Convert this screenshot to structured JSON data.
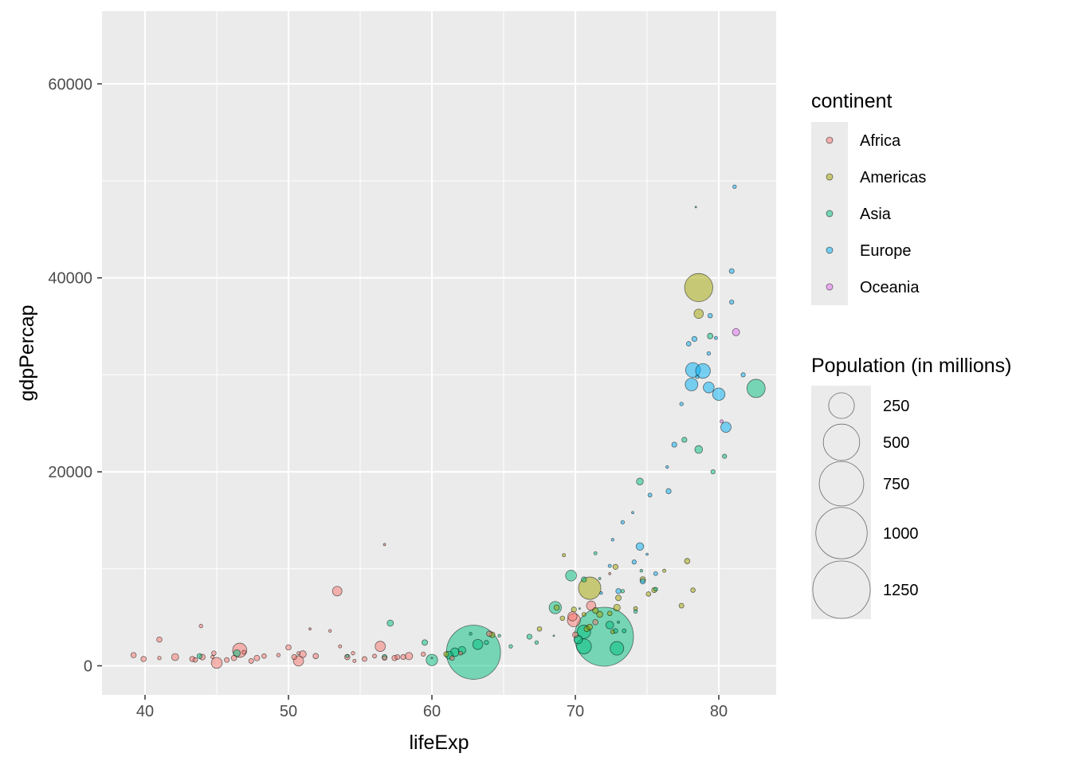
{
  "chart_data": {
    "type": "scatter",
    "xlabel": "lifeExp",
    "ylabel": "gdpPercap",
    "xlim": [
      37,
      84
    ],
    "ylim": [
      -3000,
      67500
    ],
    "x_ticks": [
      40,
      50,
      60,
      70,
      80
    ],
    "y_ticks": [
      0,
      20000,
      40000,
      60000
    ],
    "x_tick_labels": [
      "40",
      "50",
      "60",
      "70",
      "80"
    ],
    "y_tick_labels": [
      "0",
      "20000",
      "40000",
      "60000"
    ],
    "grid": true,
    "point_alpha": 0.5,
    "color_legend": {
      "title": "continent",
      "position": "right",
      "entries": [
        {
          "name": "Africa",
          "color": "#F8766D"
        },
        {
          "name": "Americas",
          "color": "#A3A500"
        },
        {
          "name": "Asia",
          "color": "#00BF7D"
        },
        {
          "name": "Europe",
          "color": "#00B0F6"
        },
        {
          "name": "Oceania",
          "color": "#E76BF3"
        }
      ]
    },
    "size_legend": {
      "title": "Population (in millions)",
      "position": "right",
      "breaks": [
        250,
        500,
        750,
        1000,
        1250
      ],
      "labels": [
        "250",
        "500",
        "750",
        "1000",
        "1250"
      ]
    },
    "series": [
      {
        "name": "Africa",
        "color": "#F8766D",
        "points": [
          [
            39.2,
            1100,
            11
          ],
          [
            39.9,
            700,
            11
          ],
          [
            41.0,
            2700,
            11
          ],
          [
            41.0,
            800,
            5
          ],
          [
            42.1,
            900,
            19
          ],
          [
            43.3,
            700,
            11
          ],
          [
            43.5,
            600,
            8
          ],
          [
            43.9,
            4100,
            5
          ],
          [
            44.0,
            900,
            12
          ],
          [
            44.7,
            900,
            4
          ],
          [
            44.8,
            1300,
            8
          ],
          [
            45.0,
            300,
            45
          ],
          [
            45.7,
            600,
            9
          ],
          [
            46.2,
            800,
            11
          ],
          [
            46.6,
            1600,
            77
          ],
          [
            46.9,
            1400,
            6
          ],
          [
            47.4,
            500,
            9
          ],
          [
            47.8,
            800,
            12
          ],
          [
            48.3,
            1000,
            8
          ],
          [
            49.3,
            1100,
            5
          ],
          [
            50.0,
            1900,
            11
          ],
          [
            50.4,
            900,
            10
          ],
          [
            50.7,
            1300,
            4
          ],
          [
            50.7,
            500,
            40
          ],
          [
            51.0,
            1200,
            18
          ],
          [
            51.5,
            3800,
            2
          ],
          [
            51.9,
            1000,
            11
          ],
          [
            52.9,
            3600,
            3
          ],
          [
            53.4,
            7700,
            35
          ],
          [
            53.6,
            2000,
            4
          ],
          [
            54.1,
            900,
            11
          ],
          [
            54.5,
            1300,
            5
          ],
          [
            54.6,
            500,
            4
          ],
          [
            55.3,
            700,
            9
          ],
          [
            56.0,
            1000,
            6
          ],
          [
            56.4,
            2000,
            40
          ],
          [
            56.7,
            800,
            8
          ],
          [
            56.7,
            12500,
            2
          ],
          [
            57.4,
            800,
            11
          ],
          [
            57.6,
            900,
            9
          ],
          [
            58.0,
            900,
            10
          ],
          [
            58.4,
            1000,
            21
          ],
          [
            59.4,
            1200,
            7
          ],
          [
            60.0,
            800,
            1
          ],
          [
            61.4,
            800,
            8
          ],
          [
            62.0,
            1300,
            6
          ],
          [
            64.0,
            3300,
            11
          ],
          [
            69.8,
            5100,
            32
          ],
          [
            69.9,
            4700,
            65
          ],
          [
            70.0,
            3200,
            12
          ],
          [
            71.1,
            6200,
            33
          ],
          [
            71.4,
            4500,
            11
          ],
          [
            72.4,
            9500,
            2
          ]
        ]
      },
      {
        "name": "Americas",
        "color": "#A3A500",
        "points": [
          [
            61.0,
            1200,
            10
          ],
          [
            64.2,
            3200,
            12
          ],
          [
            67.5,
            3800,
            8
          ],
          [
            68.7,
            6000,
            11
          ],
          [
            69.1,
            4900,
            8
          ],
          [
            69.2,
            11400,
            4
          ],
          [
            69.9,
            5800,
            10
          ],
          [
            70.6,
            5300,
            6
          ],
          [
            70.8,
            3800,
            12
          ],
          [
            71.0,
            8000,
            190
          ],
          [
            71.0,
            4000,
            12
          ],
          [
            71.4,
            5700,
            13
          ],
          [
            71.7,
            5300,
            14
          ],
          [
            72.4,
            5400,
            8
          ],
          [
            72.6,
            3500,
            6
          ],
          [
            72.8,
            10200,
            10
          ],
          [
            72.9,
            6000,
            17
          ],
          [
            73.0,
            7000,
            12
          ],
          [
            74.2,
            5900,
            6
          ],
          [
            74.7,
            8900,
            12
          ],
          [
            75.1,
            7400,
            8
          ],
          [
            75.5,
            7800,
            10
          ],
          [
            76.2,
            9800,
            4
          ],
          [
            77.4,
            6200,
            9
          ],
          [
            77.8,
            10800,
            11
          ],
          [
            78.2,
            7800,
            8
          ],
          [
            78.6,
            39000,
            301
          ],
          [
            78.6,
            36300,
            33
          ]
        ]
      },
      {
        "name": "Asia",
        "color": "#00BF7D",
        "points": [
          [
            43.8,
            1000,
            10
          ],
          [
            46.4,
            1300,
            19
          ],
          [
            54.1,
            1000,
            4
          ],
          [
            56.7,
            900,
            10
          ],
          [
            57.1,
            4400,
            15
          ],
          [
            59.5,
            2400,
            12
          ],
          [
            60.0,
            600,
            50
          ],
          [
            61.2,
            1100,
            23
          ],
          [
            61.6,
            1400,
            28
          ],
          [
            62.1,
            1600,
            22
          ],
          [
            62.7,
            3300,
            3
          ],
          [
            62.9,
            1400,
            1111
          ],
          [
            63.2,
            2200,
            39
          ],
          [
            63.8,
            2400,
            7
          ],
          [
            64.7,
            3100,
            3
          ],
          [
            65.5,
            2000,
            5
          ],
          [
            66.8,
            3000,
            10
          ],
          [
            67.3,
            2400,
            5
          ],
          [
            68.5,
            3100,
            1
          ],
          [
            68.6,
            6000,
            57
          ],
          [
            69.7,
            9300,
            45
          ],
          [
            70.2,
            2700,
            27
          ],
          [
            70.3,
            5900,
            1
          ],
          [
            70.6,
            3500,
            69
          ],
          [
            70.6,
            2000,
            85
          ],
          [
            70.6,
            8900,
            10
          ],
          [
            71.4,
            11600,
            4
          ],
          [
            71.7,
            9000,
            2
          ],
          [
            72.0,
            3000,
            1318
          ],
          [
            72.4,
            4200,
            23
          ],
          [
            72.8,
            3600,
            8
          ],
          [
            72.9,
            1800,
            70
          ],
          [
            73.0,
            4500,
            2
          ],
          [
            73.3,
            7700,
            5
          ],
          [
            73.4,
            3600,
            6
          ],
          [
            74.2,
            5600,
            5
          ],
          [
            74.5,
            19000,
            18
          ],
          [
            74.6,
            9800,
            3
          ],
          [
            75.6,
            7900,
            6
          ],
          [
            77.6,
            23300,
            10
          ],
          [
            78.4,
            47300,
            1
          ],
          [
            78.6,
            22300,
            23
          ],
          [
            79.4,
            34000,
            12
          ],
          [
            79.6,
            20000,
            7
          ],
          [
            80.4,
            21600,
            7
          ],
          [
            82.6,
            28600,
            127
          ]
        ]
      },
      {
        "name": "Europe",
        "color": "#00B0F6",
        "points": [
          [
            71.8,
            7500,
            3
          ],
          [
            72.4,
            10300,
            4
          ],
          [
            72.6,
            13000,
            3
          ],
          [
            73.0,
            7700,
            10
          ],
          [
            73.3,
            14800,
            5
          ],
          [
            74.0,
            15800,
            2
          ],
          [
            74.1,
            10700,
            7
          ],
          [
            74.5,
            12300,
            22
          ],
          [
            74.7,
            8700,
            10
          ],
          [
            75.0,
            11500,
            2
          ],
          [
            75.2,
            17600,
            6
          ],
          [
            75.6,
            9500,
            6
          ],
          [
            76.4,
            20500,
            3
          ],
          [
            76.5,
            18000,
            10
          ],
          [
            76.9,
            22800,
            10
          ],
          [
            77.4,
            27000,
            5
          ],
          [
            77.9,
            33200,
            8
          ],
          [
            78.1,
            29000,
            61
          ],
          [
            78.2,
            30500,
            83
          ],
          [
            78.3,
            33700,
            10
          ],
          [
            78.5,
            29800,
            5
          ],
          [
            78.9,
            30400,
            82
          ],
          [
            79.3,
            28700,
            45
          ],
          [
            79.3,
            32200,
            5
          ],
          [
            79.4,
            36100,
            8
          ],
          [
            79.8,
            33800,
            4
          ],
          [
            80.0,
            28000,
            58
          ],
          [
            80.5,
            24600,
            40
          ],
          [
            80.9,
            37500,
            7
          ],
          [
            80.9,
            40700,
            9
          ],
          [
            81.1,
            49400,
            5
          ],
          [
            81.7,
            30000,
            7
          ]
        ]
      },
      {
        "name": "Oceania",
        "color": "#E76BF3",
        "points": [
          [
            80.2,
            25200,
            4
          ],
          [
            81.2,
            34400,
            20
          ]
        ]
      }
    ]
  }
}
